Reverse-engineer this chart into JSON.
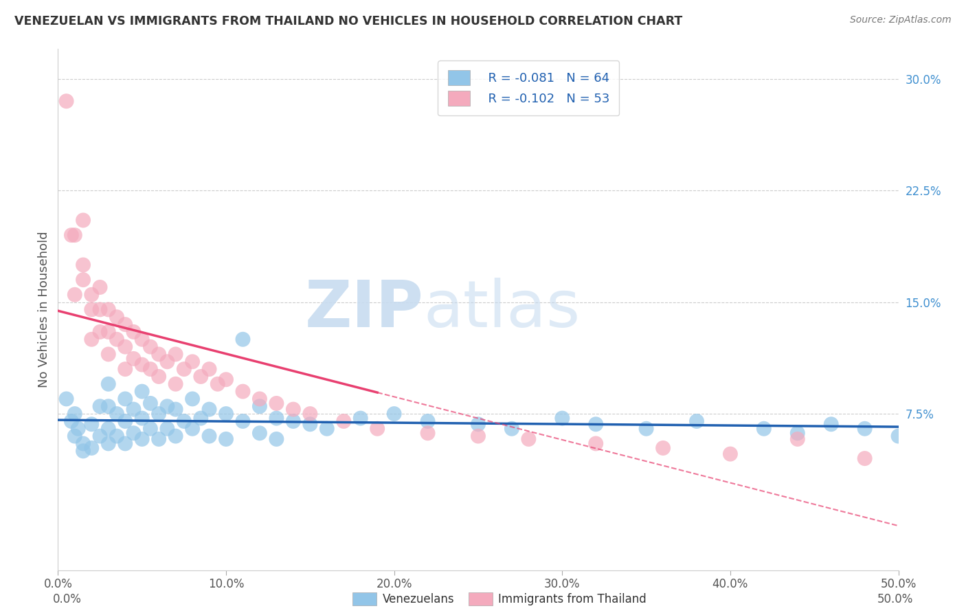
{
  "title": "VENEZUELAN VS IMMIGRANTS FROM THAILAND NO VEHICLES IN HOUSEHOLD CORRELATION CHART",
  "source": "Source: ZipAtlas.com",
  "ylabel": "No Vehicles in Household",
  "watermark_zip": "ZIP",
  "watermark_atlas": "atlas",
  "venezuelan_R": -0.081,
  "venezuelan_N": 64,
  "thailand_R": -0.102,
  "thailand_N": 53,
  "xlim": [
    0.0,
    0.5
  ],
  "ylim": [
    -0.03,
    0.32
  ],
  "yticks": [
    0.075,
    0.15,
    0.225,
    0.3
  ],
  "ytick_labels": [
    "7.5%",
    "15.0%",
    "22.5%",
    "30.0%"
  ],
  "xticks": [
    0.0,
    0.1,
    0.2,
    0.3,
    0.4,
    0.5
  ],
  "xtick_labels": [
    "0.0%",
    "10.0%",
    "20.0%",
    "30.0%",
    "40.0%",
    "50.0%"
  ],
  "venezuelan_color": "#92C5E8",
  "thailand_color": "#F4AABD",
  "venezuelan_line_color": "#2060B0",
  "thailand_line_color": "#E84070",
  "background_color": "#FFFFFF",
  "venezuelan_x": [
    0.005,
    0.008,
    0.01,
    0.01,
    0.012,
    0.015,
    0.015,
    0.02,
    0.02,
    0.025,
    0.025,
    0.03,
    0.03,
    0.03,
    0.03,
    0.035,
    0.035,
    0.04,
    0.04,
    0.04,
    0.045,
    0.045,
    0.05,
    0.05,
    0.05,
    0.055,
    0.055,
    0.06,
    0.06,
    0.065,
    0.065,
    0.07,
    0.07,
    0.075,
    0.08,
    0.08,
    0.085,
    0.09,
    0.09,
    0.1,
    0.1,
    0.11,
    0.11,
    0.12,
    0.12,
    0.13,
    0.13,
    0.14,
    0.15,
    0.16,
    0.18,
    0.2,
    0.22,
    0.25,
    0.27,
    0.3,
    0.32,
    0.35,
    0.38,
    0.42,
    0.44,
    0.46,
    0.48,
    0.5
  ],
  "venezuelan_y": [
    0.085,
    0.07,
    0.075,
    0.06,
    0.065,
    0.055,
    0.05,
    0.068,
    0.052,
    0.08,
    0.06,
    0.095,
    0.08,
    0.065,
    0.055,
    0.075,
    0.06,
    0.085,
    0.07,
    0.055,
    0.078,
    0.062,
    0.09,
    0.072,
    0.058,
    0.082,
    0.065,
    0.075,
    0.058,
    0.08,
    0.065,
    0.078,
    0.06,
    0.07,
    0.085,
    0.065,
    0.072,
    0.078,
    0.06,
    0.075,
    0.058,
    0.125,
    0.07,
    0.08,
    0.062,
    0.072,
    0.058,
    0.07,
    0.068,
    0.065,
    0.072,
    0.075,
    0.07,
    0.068,
    0.065,
    0.072,
    0.068,
    0.065,
    0.07,
    0.065,
    0.062,
    0.068,
    0.065,
    0.06
  ],
  "thailand_x": [
    0.005,
    0.008,
    0.01,
    0.01,
    0.015,
    0.015,
    0.015,
    0.02,
    0.02,
    0.02,
    0.025,
    0.025,
    0.025,
    0.03,
    0.03,
    0.03,
    0.035,
    0.035,
    0.04,
    0.04,
    0.04,
    0.045,
    0.045,
    0.05,
    0.05,
    0.055,
    0.055,
    0.06,
    0.06,
    0.065,
    0.07,
    0.07,
    0.075,
    0.08,
    0.085,
    0.09,
    0.095,
    0.1,
    0.11,
    0.12,
    0.13,
    0.14,
    0.15,
    0.17,
    0.19,
    0.22,
    0.25,
    0.28,
    0.32,
    0.36,
    0.4,
    0.44,
    0.48
  ],
  "thailand_y": [
    0.285,
    0.195,
    0.195,
    0.155,
    0.205,
    0.175,
    0.165,
    0.155,
    0.145,
    0.125,
    0.16,
    0.145,
    0.13,
    0.145,
    0.13,
    0.115,
    0.14,
    0.125,
    0.135,
    0.12,
    0.105,
    0.13,
    0.112,
    0.125,
    0.108,
    0.12,
    0.105,
    0.115,
    0.1,
    0.11,
    0.115,
    0.095,
    0.105,
    0.11,
    0.1,
    0.105,
    0.095,
    0.098,
    0.09,
    0.085,
    0.082,
    0.078,
    0.075,
    0.07,
    0.065,
    0.062,
    0.06,
    0.058,
    0.055,
    0.052,
    0.048,
    0.058,
    0.045
  ]
}
